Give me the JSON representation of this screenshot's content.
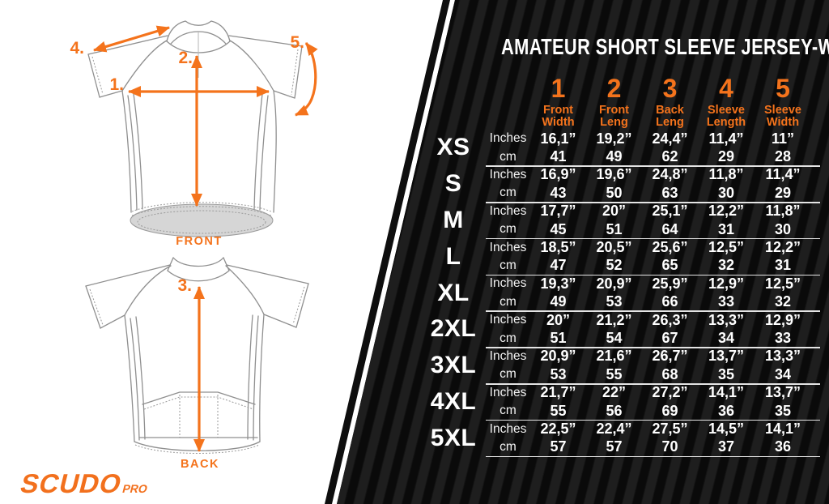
{
  "title": "AMATEUR SHORT SLEEVE JERSEY-WOMAN",
  "brand": {
    "name": "SCUDO",
    "suffix": "PRO"
  },
  "diagram": {
    "front_label": "FRONT",
    "back_label": "BACK",
    "markers": {
      "m1": "1.",
      "m2": "2.",
      "m3": "3.",
      "m4": "4.",
      "m5": "5."
    }
  },
  "colors": {
    "accent": "#f4731c",
    "panel_bg": "#0a0a0a",
    "panel_stripe": "#1e1e1e",
    "separator": "#e4e4e4"
  },
  "table": {
    "unit_labels": {
      "inches": "Inches",
      "cm": "cm"
    },
    "columns": [
      {
        "num": "1",
        "label": "Front Width"
      },
      {
        "num": "2",
        "label": "Front Leng"
      },
      {
        "num": "3",
        "label": "Back Leng"
      },
      {
        "num": "4",
        "label": "Sleeve Length"
      },
      {
        "num": "5",
        "label": "Sleeve Width"
      }
    ],
    "rows": [
      {
        "size": "XS",
        "inches": [
          "16,1”",
          "19,2”",
          "24,4”",
          "11,4”",
          "11”"
        ],
        "cm": [
          "41",
          "49",
          "62",
          "29",
          "28"
        ]
      },
      {
        "size": "S",
        "inches": [
          "16,9”",
          "19,6”",
          "24,8”",
          "11,8”",
          "11,4”"
        ],
        "cm": [
          "43",
          "50",
          "63",
          "30",
          "29"
        ]
      },
      {
        "size": "M",
        "inches": [
          "17,7”",
          "20”",
          "25,1”",
          "12,2”",
          "11,8”"
        ],
        "cm": [
          "45",
          "51",
          "64",
          "31",
          "30"
        ]
      },
      {
        "size": "L",
        "inches": [
          "18,5”",
          "20,5”",
          "25,6”",
          "12,5”",
          "12,2”"
        ],
        "cm": [
          "47",
          "52",
          "65",
          "32",
          "31"
        ]
      },
      {
        "size": "XL",
        "inches": [
          "19,3”",
          "20,9”",
          "25,9”",
          "12,9”",
          "12,5”"
        ],
        "cm": [
          "49",
          "53",
          "66",
          "33",
          "32"
        ]
      },
      {
        "size": "2XL",
        "inches": [
          "20”",
          "21,2”",
          "26,3”",
          "13,3”",
          "12,9”"
        ],
        "cm": [
          "51",
          "54",
          "67",
          "34",
          "33"
        ]
      },
      {
        "size": "3XL",
        "inches": [
          "20,9”",
          "21,6”",
          "26,7”",
          "13,7”",
          "13,3”"
        ],
        "cm": [
          "53",
          "55",
          "68",
          "35",
          "34"
        ]
      },
      {
        "size": "4XL",
        "inches": [
          "21,7”",
          "22”",
          "27,2”",
          "14,1”",
          "13,7”"
        ],
        "cm": [
          "55",
          "56",
          "69",
          "36",
          "35"
        ]
      },
      {
        "size": "5XL",
        "inches": [
          "22,5”",
          "22,4”",
          "27,5”",
          "14,5”",
          "14,1”"
        ],
        "cm": [
          "57",
          "57",
          "70",
          "37",
          "36"
        ]
      }
    ]
  }
}
